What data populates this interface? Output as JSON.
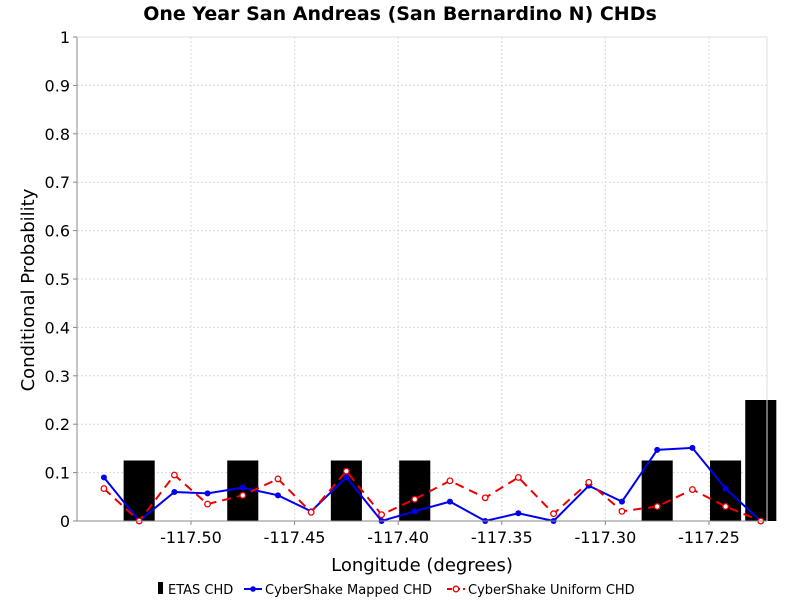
{
  "chart_data": {
    "type": "bar",
    "title": "One Year San Andreas (San Bernardino N) CHDs",
    "xlabel": "Longitude (degrees)",
    "ylabel": "Conditional Probability",
    "xlim": [
      -117.555,
      -117.222
    ],
    "ylim": [
      0,
      1
    ],
    "x_ticks": [
      -117.5,
      -117.45,
      -117.4,
      -117.35,
      -117.3,
      -117.25
    ],
    "x_tick_labels": [
      "-117.50",
      "-117.45",
      "-117.40",
      "-117.35",
      "-117.30",
      "-117.25"
    ],
    "y_ticks": [
      0,
      0.1,
      0.2,
      0.3,
      0.4,
      0.5,
      0.6,
      0.7,
      0.8,
      0.9,
      1
    ],
    "y_tick_labels": [
      "0",
      "0.1",
      "0.2",
      "0.3",
      "0.4",
      "0.5",
      "0.6",
      "0.7",
      "0.8",
      "0.9",
      "1"
    ],
    "grid": true,
    "legend_position": "bottom",
    "series": [
      {
        "name": "ETAS CHD",
        "type": "bar",
        "color": "#000000",
        "bar_width": 0.015,
        "x": [
          -117.525,
          -117.475,
          -117.425,
          -117.392,
          -117.275,
          -117.242,
          -117.225
        ],
        "values": [
          0.125,
          0.125,
          0.125,
          0.125,
          0.125,
          0.125,
          0.25
        ]
      },
      {
        "name": "CyberShake Mapped CHD",
        "type": "line",
        "color": "#0000ee",
        "marker": "filled-circle",
        "x": [
          -117.542,
          -117.525,
          -117.508,
          -117.492,
          -117.475,
          -117.458,
          -117.442,
          -117.425,
          -117.408,
          -117.392,
          -117.375,
          -117.358,
          -117.342,
          -117.325,
          -117.308,
          -117.292,
          -117.275,
          -117.258,
          -117.242,
          -117.225
        ],
        "values": [
          0.09,
          0.0,
          0.06,
          0.057,
          0.069,
          0.053,
          0.02,
          0.09,
          0.0,
          0.02,
          0.04,
          0.0,
          0.016,
          0.0,
          0.073,
          0.04,
          0.147,
          0.151,
          0.067,
          0.0
        ]
      },
      {
        "name": "CyberShake Uniform CHD",
        "type": "line",
        "color": "#ee0000",
        "marker": "open-circle",
        "dashed": true,
        "x": [
          -117.542,
          -117.525,
          -117.508,
          -117.492,
          -117.475,
          -117.458,
          -117.442,
          -117.425,
          -117.408,
          -117.392,
          -117.375,
          -117.358,
          -117.342,
          -117.325,
          -117.308,
          -117.292,
          -117.275,
          -117.258,
          -117.242,
          -117.225
        ],
        "values": [
          0.067,
          0.0,
          0.095,
          0.035,
          0.053,
          0.087,
          0.018,
          0.103,
          0.013,
          0.045,
          0.083,
          0.048,
          0.09,
          0.015,
          0.08,
          0.02,
          0.03,
          0.065,
          0.03,
          0.0
        ]
      }
    ]
  }
}
